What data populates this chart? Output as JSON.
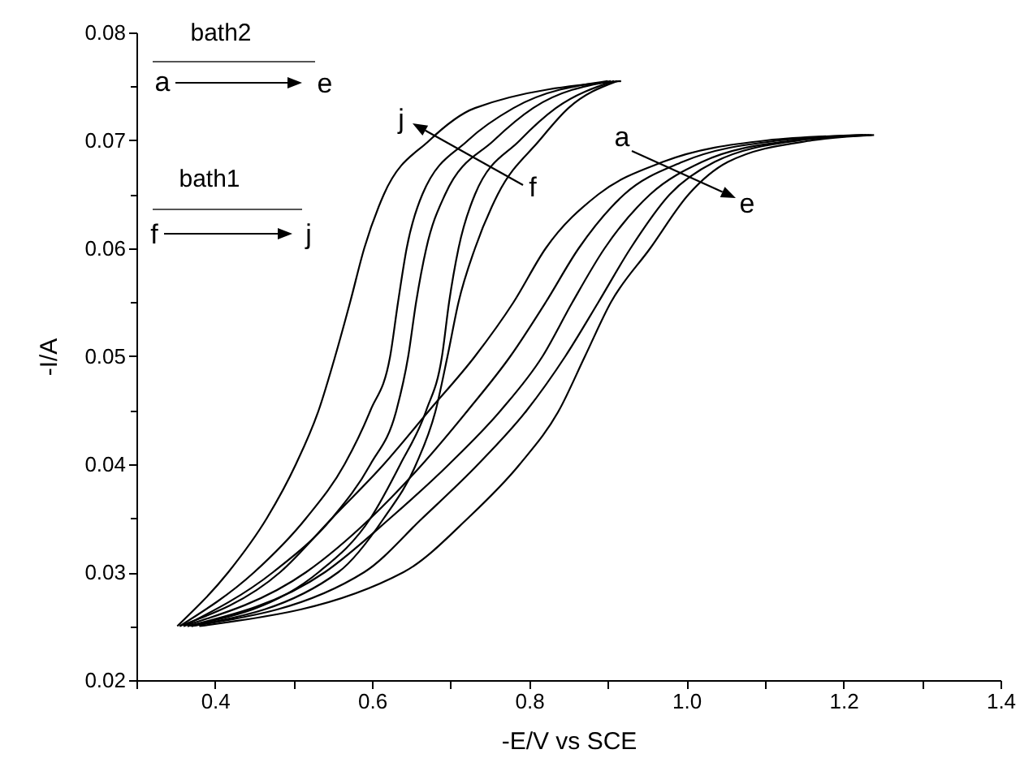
{
  "chart_data": {
    "type": "line",
    "xlabel": "-E/V vs SCE",
    "ylabel": "-I/A",
    "xlim": [
      0.3,
      1.4
    ],
    "ylim": [
      0.02,
      0.08
    ],
    "xticks": [
      {
        "value": 0.3,
        "label": null
      },
      0.4,
      {
        "value": 0.5,
        "label": null
      },
      0.6,
      {
        "value": 0.7,
        "label": null
      },
      0.8,
      {
        "value": 0.9,
        "label": null
      },
      {
        "value": 1.0,
        "label": "1.0"
      },
      {
        "value": 1.1,
        "label": null
      },
      1.2,
      {
        "value": 1.3,
        "label": null
      },
      1.4
    ],
    "yticks": [
      0.02,
      {
        "value": 0.025,
        "label": null
      },
      0.03,
      {
        "value": 0.035,
        "label": null
      },
      0.04,
      {
        "value": 0.045,
        "label": null
      },
      0.05,
      {
        "value": 0.055,
        "label": null
      },
      0.06,
      {
        "value": 0.065,
        "label": null
      },
      0.07,
      {
        "value": 0.075,
        "label": null
      },
      0.08
    ],
    "grid": false,
    "legend": false,
    "marker": "none",
    "line_style": "solid",
    "series": [
      {
        "color": "#000000",
        "x": [
          0.355,
          0.483,
          0.549,
          0.615,
          0.673,
          0.731,
          0.78,
          0.821,
          0.888,
          0.97,
          1.102,
          1.225
        ],
        "values": [
          0.025,
          0.03,
          0.035,
          0.04,
          0.045,
          0.05,
          0.055,
          0.06,
          0.065,
          0.068,
          0.07,
          0.0705
        ]
      },
      {
        "color": "#000000",
        "x": [
          0.36,
          0.516,
          0.598,
          0.664,
          0.722,
          0.776,
          0.821,
          0.863,
          0.921,
          0.995,
          1.119,
          1.229
        ],
        "values": [
          0.025,
          0.03,
          0.035,
          0.04,
          0.045,
          0.05,
          0.055,
          0.06,
          0.065,
          0.068,
          0.07,
          0.0705
        ]
      },
      {
        "color": "#000000",
        "x": [
          0.365,
          0.54,
          0.623,
          0.698,
          0.764,
          0.817,
          0.855,
          0.896,
          0.954,
          1.02,
          1.136,
          1.233
        ],
        "values": [
          0.025,
          0.03,
          0.035,
          0.04,
          0.045,
          0.05,
          0.055,
          0.06,
          0.065,
          0.068,
          0.07,
          0.0705
        ]
      },
      {
        "color": "#000000",
        "x": [
          0.37,
          0.59,
          0.664,
          0.735,
          0.797,
          0.846,
          0.888,
          0.929,
          0.979,
          1.036,
          1.144,
          1.236
        ],
        "values": [
          0.025,
          0.03,
          0.035,
          0.04,
          0.045,
          0.05,
          0.055,
          0.06,
          0.065,
          0.068,
          0.07,
          0.0705
        ]
      },
      {
        "color": "#000000",
        "x": [
          0.38,
          0.64,
          0.722,
          0.788,
          0.838,
          0.871,
          0.904,
          0.954,
          1.003,
          1.053,
          1.16,
          1.239
        ],
        "values": [
          0.025,
          0.03,
          0.035,
          0.04,
          0.045,
          0.05,
          0.055,
          0.06,
          0.065,
          0.068,
          0.07,
          0.0705
        ]
      },
      {
        "color": "#000000",
        "x": [
          0.37,
          0.557,
          0.615,
          0.656,
          0.681,
          0.696,
          0.71,
          0.731,
          0.76,
          0.813,
          0.85,
          0.912
        ],
        "values": [
          0.025,
          0.03,
          0.035,
          0.04,
          0.045,
          0.05,
          0.055,
          0.06,
          0.065,
          0.07,
          0.073,
          0.0755
        ]
      },
      {
        "color": "#000000",
        "x": [
          0.365,
          0.532,
          0.598,
          0.636,
          0.669,
          0.689,
          0.698,
          0.71,
          0.731,
          0.788,
          0.834,
          0.908
        ],
        "values": [
          0.025,
          0.03,
          0.035,
          0.04,
          0.045,
          0.05,
          0.055,
          0.06,
          0.065,
          0.07,
          0.073,
          0.0755
        ]
      },
      {
        "color": "#000000",
        "x": [
          0.36,
          0.474,
          0.549,
          0.598,
          0.631,
          0.646,
          0.656,
          0.669,
          0.693,
          0.755,
          0.805,
          0.904
        ],
        "values": [
          0.025,
          0.03,
          0.035,
          0.04,
          0.045,
          0.05,
          0.055,
          0.06,
          0.065,
          0.07,
          0.073,
          0.0755
        ]
      },
      {
        "color": "#000000",
        "x": [
          0.355,
          0.45,
          0.516,
          0.565,
          0.598,
          0.623,
          0.633,
          0.644,
          0.664,
          0.722,
          0.78,
          0.9
        ],
        "values": [
          0.025,
          0.03,
          0.035,
          0.04,
          0.045,
          0.05,
          0.055,
          0.06,
          0.065,
          0.07,
          0.073,
          0.0755
        ]
      },
      {
        "color": "#000000",
        "x": [
          0.352,
          0.417,
          0.466,
          0.503,
          0.532,
          0.553,
          0.572,
          0.59,
          0.615,
          0.673,
          0.731,
          0.917
        ],
        "values": [
          0.025,
          0.03,
          0.035,
          0.04,
          0.045,
          0.05,
          0.055,
          0.06,
          0.065,
          0.07,
          0.073,
          0.0755
        ]
      }
    ],
    "annotations": [
      "bath2",
      "a",
      "e",
      "bath1",
      "f",
      "j",
      "j",
      "f",
      "a",
      "e"
    ]
  }
}
